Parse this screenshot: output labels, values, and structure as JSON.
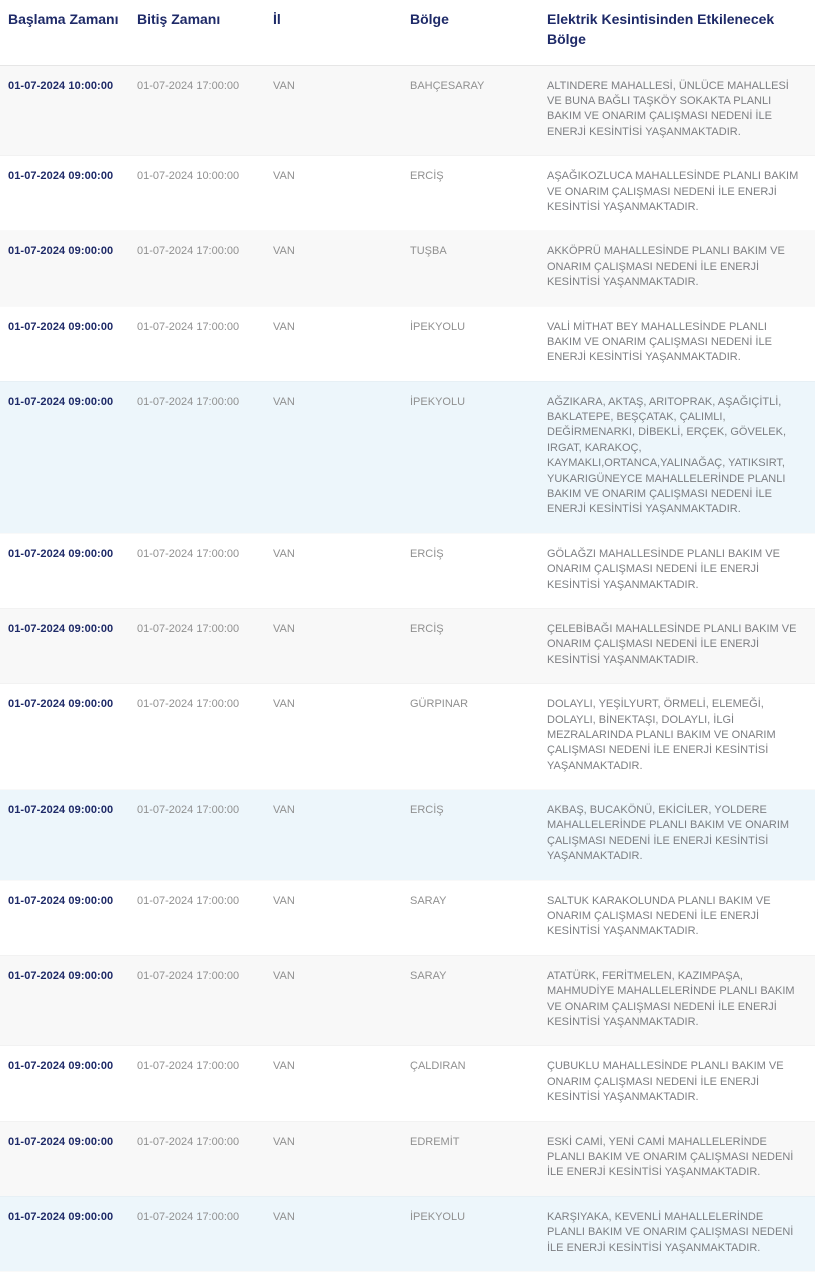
{
  "colors": {
    "header_text": "#1e2a68",
    "start_time_text": "#1e2a68",
    "muted_text": "#909090",
    "description_text": "#7d7f83",
    "row_gray": "#f8f8f8",
    "row_blue": "#edf6fb",
    "row_white": "#ffffff"
  },
  "table": {
    "columns": [
      {
        "key": "start",
        "label": "Başlama Zamanı"
      },
      {
        "key": "end",
        "label": "Bitiş Zamanı"
      },
      {
        "key": "province",
        "label": "İl"
      },
      {
        "key": "district",
        "label": "Bölge"
      },
      {
        "key": "affected",
        "label": "Elektrik Kesintisinden Etkilenecek Bölge"
      }
    ],
    "rows": [
      {
        "start": "01-07-2024 10:00:00",
        "end": "01-07-2024 17:00:00",
        "province": "VAN",
        "district": "BAHÇESARAY",
        "affected": "ALTINDERE MAHALLESİ, ÜNLÜCE MAHALLESİ VE BUNA BAĞLI TAŞKÖY SOKAKTA PLANLI BAKIM VE ONARIM ÇALIŞMASI NEDENİ İLE ENERJİ KESİNTİSİ YAŞANMAKTADIR.",
        "tint": "gray"
      },
      {
        "start": "01-07-2024 09:00:00",
        "end": "01-07-2024 10:00:00",
        "province": "VAN",
        "district": "ERCİŞ",
        "affected": "AŞAĞIKOZLUCA MAHALLESİNDE PLANLI BAKIM VE ONARIM ÇALIŞMASI NEDENİ İLE ENERJİ KESİNTİSİ YAŞANMAKTADIR.",
        "tint": "white"
      },
      {
        "start": "01-07-2024 09:00:00",
        "end": "01-07-2024 17:00:00",
        "province": "VAN",
        "district": "TUŞBA",
        "affected": "AKKÖPRÜ MAHALLESİNDE PLANLI BAKIM VE ONARIM ÇALIŞMASI NEDENİ İLE ENERJİ KESİNTİSİ YAŞANMAKTADIR.",
        "tint": "gray"
      },
      {
        "start": "01-07-2024 09:00:00",
        "end": "01-07-2024 17:00:00",
        "province": "VAN",
        "district": "İPEKYOLU",
        "affected": "VALİ MİTHAT BEY MAHALLESİNDE PLANLI BAKIM VE ONARIM ÇALIŞMASI NEDENİ İLE ENERJİ KESİNTİSİ YAŞANMAKTADIR.",
        "tint": "white"
      },
      {
        "start": "01-07-2024 09:00:00",
        "end": "01-07-2024 17:00:00",
        "province": "VAN",
        "district": "İPEKYOLU",
        "affected": "AĞZIKARA, AKTAŞ, ARITOPRAK, AŞAĞIÇİTLİ, BAKLATEPE, BEŞÇATAK, ÇALIMLI, DEĞİRMENARKI, DİBEKLİ, ERÇEK, GÖVELEK, IRGAT, KARAKOÇ, KAYMAKLI,ORTANCA,YALINAĞAÇ, YATIKSIRT, YUKARIGÜNEYCE MAHALLELERİNDE PLANLI BAKIM VE ONARIM ÇALIŞMASI NEDENİ İLE ENERJİ KESİNTİSİ YAŞANMAKTADIR.",
        "tint": "blue"
      },
      {
        "start": "01-07-2024 09:00:00",
        "end": "01-07-2024 17:00:00",
        "province": "VAN",
        "district": "ERCİŞ",
        "affected": "GÖLAĞZI MAHALLESİNDE PLANLI BAKIM VE ONARIM ÇALIŞMASI NEDENİ İLE ENERJİ KESİNTİSİ YAŞANMAKTADIR.",
        "tint": "white"
      },
      {
        "start": "01-07-2024 09:00:00",
        "end": "01-07-2024 17:00:00",
        "province": "VAN",
        "district": "ERCİŞ",
        "affected": "ÇELEBİBAĞI MAHALLESİNDE PLANLI BAKIM VE ONARIM ÇALIŞMASI NEDENİ İLE ENERJİ KESİNTİSİ YAŞANMAKTADIR.",
        "tint": "gray"
      },
      {
        "start": "01-07-2024 09:00:00",
        "end": "01-07-2024 17:00:00",
        "province": "VAN",
        "district": "GÜRPINAR",
        "affected": "DOLAYLI, YEŞİLYURT, ÖRMELİ, ELEMEĞİ, DOLAYLI, BİNEKTAŞI, DOLAYLI, İLGİ MEZRALARINDA PLANLI BAKIM VE ONARIM ÇALIŞMASI NEDENİ İLE ENERJİ KESİNTİSİ YAŞANMAKTADIR.",
        "tint": "white"
      },
      {
        "start": "01-07-2024 09:00:00",
        "end": "01-07-2024 17:00:00",
        "province": "VAN",
        "district": "ERCİŞ",
        "affected": "AKBAŞ, BUCAKÖNÜ, EKİCİLER, YOLDERE MAHALLELERİNDE PLANLI BAKIM VE ONARIM ÇALIŞMASI NEDENİ İLE ENERJİ KESİNTİSİ YAŞANMAKTADIR.",
        "tint": "blue"
      },
      {
        "start": "01-07-2024 09:00:00",
        "end": "01-07-2024 17:00:00",
        "province": "VAN",
        "district": "SARAY",
        "affected": "SALTUK KARAKOLUNDA PLANLI BAKIM VE ONARIM ÇALIŞMASI NEDENİ İLE ENERJİ KESİNTİSİ YAŞANMAKTADIR.",
        "tint": "white"
      },
      {
        "start": "01-07-2024 09:00:00",
        "end": "01-07-2024 17:00:00",
        "province": "VAN",
        "district": "SARAY",
        "affected": "ATATÜRK, FERİTMELEN, KAZIMPAŞA, MAHMUDİYE MAHALLELERİNDE PLANLI BAKIM VE ONARIM ÇALIŞMASI NEDENİ İLE ENERJİ KESİNTİSİ YAŞANMAKTADIR.",
        "tint": "gray"
      },
      {
        "start": "01-07-2024 09:00:00",
        "end": "01-07-2024 17:00:00",
        "province": "VAN",
        "district": "ÇALDIRAN",
        "affected": "ÇUBUKLU MAHALLESİNDE PLANLI BAKIM VE ONARIM ÇALIŞMASI NEDENİ İLE ENERJİ KESİNTİSİ YAŞANMAKTADIR.",
        "tint": "white"
      },
      {
        "start": "01-07-2024 09:00:00",
        "end": "01-07-2024 17:00:00",
        "province": "VAN",
        "district": "EDREMİT",
        "affected": "ESKİ CAMİ, YENİ CAMİ MAHALLELERİNDE PLANLI BAKIM VE ONARIM ÇALIŞMASI NEDENİ İLE ENERJİ KESİNTİSİ YAŞANMAKTADIR.",
        "tint": "gray"
      },
      {
        "start": "01-07-2024 09:00:00",
        "end": "01-07-2024 17:00:00",
        "province": "VAN",
        "district": "İPEKYOLU",
        "affected": "KARŞIYAKA, KEVENLİ MAHALLELERİNDE PLANLI BAKIM VE ONARIM ÇALIŞMASI NEDENİ İLE ENERJİ KESİNTİSİ YAŞANMAKTADIR.",
        "tint": "blue"
      }
    ]
  }
}
